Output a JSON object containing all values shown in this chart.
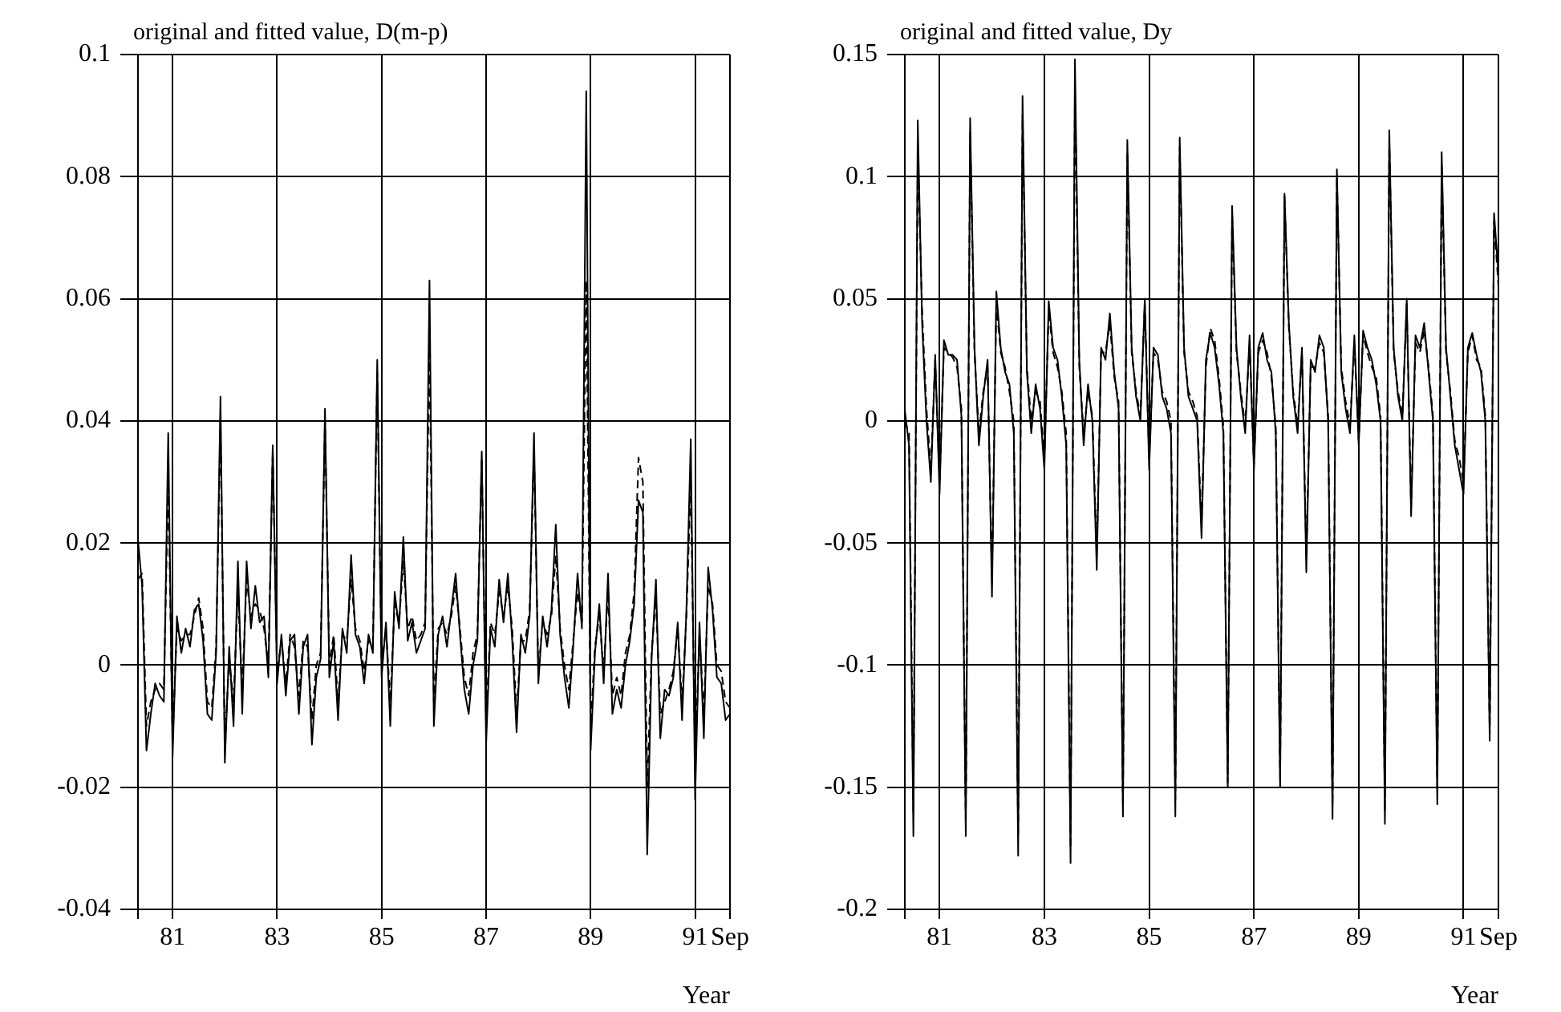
{
  "chart_data": [
    {
      "type": "line",
      "title": "original and fitted value, D(m-p)",
      "xlabel": "Year",
      "grid": true,
      "x": [
        "1980-05",
        "1980-06",
        "1980-07",
        "1980-08",
        "1980-09",
        "1980-10",
        "1980-11",
        "1980-12",
        "1981-01",
        "1981-02",
        "1981-03",
        "1981-04",
        "1981-05",
        "1981-06",
        "1981-07",
        "1981-08",
        "1981-09",
        "1981-10",
        "1981-11",
        "1981-12",
        "1982-01",
        "1982-02",
        "1982-03",
        "1982-04",
        "1982-05",
        "1982-06",
        "1982-07",
        "1982-08",
        "1982-09",
        "1982-10",
        "1982-11",
        "1982-12",
        "1983-01",
        "1983-02",
        "1983-03",
        "1983-04",
        "1983-05",
        "1983-06",
        "1983-07",
        "1983-08",
        "1983-09",
        "1983-10",
        "1983-11",
        "1983-12",
        "1984-01",
        "1984-02",
        "1984-03",
        "1984-04",
        "1984-05",
        "1984-06",
        "1984-07",
        "1984-08",
        "1984-09",
        "1984-10",
        "1984-11",
        "1984-12",
        "1985-01",
        "1985-02",
        "1985-03",
        "1985-04",
        "1985-05",
        "1985-06",
        "1985-07",
        "1985-08",
        "1985-09",
        "1985-10",
        "1985-11",
        "1985-12",
        "1986-01",
        "1986-02",
        "1986-03",
        "1986-04",
        "1986-05",
        "1986-06",
        "1986-07",
        "1986-08",
        "1986-09",
        "1986-10",
        "1986-11",
        "1986-12",
        "1987-01",
        "1987-02",
        "1987-03",
        "1987-04",
        "1987-05",
        "1987-06",
        "1987-07",
        "1987-08",
        "1987-09",
        "1987-10",
        "1987-11",
        "1987-12",
        "1988-01",
        "1988-02",
        "1988-03",
        "1988-04",
        "1988-05",
        "1988-06",
        "1988-07",
        "1988-08",
        "1988-09",
        "1988-10",
        "1988-11",
        "1988-12",
        "1989-01",
        "1989-02",
        "1989-03",
        "1989-04",
        "1989-05",
        "1989-06",
        "1989-07",
        "1989-08",
        "1989-09",
        "1989-10",
        "1989-11",
        "1989-12",
        "1990-01",
        "1990-02",
        "1990-03",
        "1990-04",
        "1990-05",
        "1990-06",
        "1990-07",
        "1990-08",
        "1990-09",
        "1990-10",
        "1990-11",
        "1990-12",
        "1991-01",
        "1991-02",
        "1991-03",
        "1991-04",
        "1991-05",
        "1991-06",
        "1991-07",
        "1991-08",
        "1991-09"
      ],
      "xlim": [
        "1980-01",
        "1991-09"
      ],
      "xticks": [
        {
          "value": "1980-05",
          "label": null
        },
        {
          "value": "1981-01",
          "label": "81"
        },
        {
          "value": "1983-01",
          "label": "83"
        },
        {
          "value": "1985-01",
          "label": "85"
        },
        {
          "value": "1987-01",
          "label": "87"
        },
        {
          "value": "1989-01",
          "label": "89"
        },
        {
          "value": "1991-01",
          "label": "91"
        },
        {
          "value": "1991-09",
          "label": "Sep"
        }
      ],
      "ylim": [
        -0.04,
        0.1
      ],
      "yticks": [
        -0.04,
        -0.02,
        0,
        0.02,
        0.04,
        0.06,
        0.08,
        0.1
      ],
      "series": [
        {
          "color": "#000000",
          "line_style": "solid",
          "values": [
            0.021,
            0.013,
            -0.014,
            -0.008,
            -0.003,
            -0.005,
            -0.006,
            0.038,
            -0.015,
            0.008,
            0.002,
            0.006,
            0.003,
            0.009,
            0.01,
            0.004,
            -0.008,
            -0.009,
            0.002,
            0.044,
            -0.016,
            0.003,
            -0.01,
            0.017,
            -0.008,
            0.017,
            0.006,
            0.013,
            0.007,
            0.008,
            -0.002,
            0.036,
            -0.003,
            0.005,
            -0.005,
            0.004,
            0.005,
            -0.008,
            0.003,
            0.005,
            -0.013,
            -0.002,
            0.001,
            0.042,
            -0.002,
            0.004,
            -0.009,
            0.006,
            0.002,
            0.018,
            0.005,
            0.003,
            -0.003,
            0.005,
            0.002,
            0.05,
            -0.002,
            0.007,
            -0.01,
            0.012,
            0.006,
            0.021,
            0.004,
            0.007,
            0.002,
            0.004,
            0.006,
            0.063,
            -0.01,
            0.005,
            0.008,
            0.003,
            0.009,
            0.015,
            0.005,
            -0.004,
            -0.008,
            0.0,
            0.004,
            0.035,
            -0.013,
            0.006,
            0.003,
            0.014,
            0.007,
            0.015,
            0.004,
            -0.011,
            0.005,
            0.002,
            0.008,
            0.038,
            -0.003,
            0.008,
            0.003,
            0.009,
            0.023,
            0.005,
            -0.002,
            -0.007,
            0.003,
            0.015,
            0.006,
            0.094,
            -0.014,
            0.002,
            0.01,
            -0.003,
            0.015,
            -0.008,
            -0.004,
            -0.007,
            0.0,
            0.004,
            0.01,
            0.027,
            0.025,
            -0.031,
            0.001,
            0.014,
            -0.012,
            -0.004,
            -0.005,
            -0.002,
            0.007,
            -0.009,
            0.009,
            0.037,
            -0.022,
            0.007,
            -0.012,
            0.016,
            0.009,
            -0.002,
            -0.003,
            -0.009,
            -0.008
          ]
        },
        {
          "color": "#000000",
          "line_style": "dashed",
          "values": [
            0.014,
            0.015,
            -0.01,
            -0.006,
            -0.004,
            -0.003,
            -0.004,
            0.03,
            -0.012,
            0.006,
            0.004,
            0.005,
            0.005,
            0.008,
            0.011,
            0.006,
            -0.006,
            -0.007,
            0.003,
            0.04,
            -0.013,
            0.001,
            -0.006,
            0.012,
            -0.004,
            0.014,
            0.008,
            0.01,
            0.009,
            0.006,
            0.0,
            0.035,
            -0.001,
            0.004,
            -0.003,
            0.005,
            0.003,
            -0.005,
            0.004,
            0.003,
            -0.009,
            0.0,
            0.002,
            0.04,
            0.0,
            0.005,
            -0.006,
            0.005,
            0.004,
            0.014,
            0.006,
            0.004,
            -0.001,
            0.004,
            0.003,
            0.048,
            0.0,
            0.006,
            -0.006,
            0.01,
            0.007,
            0.017,
            0.006,
            0.008,
            0.004,
            0.005,
            0.007,
            0.052,
            -0.006,
            0.006,
            0.007,
            0.005,
            0.008,
            0.013,
            0.006,
            -0.002,
            -0.005,
            0.002,
            0.005,
            0.034,
            -0.009,
            0.007,
            0.005,
            0.012,
            0.008,
            0.013,
            0.006,
            -0.008,
            0.004,
            0.004,
            0.009,
            0.035,
            -0.001,
            0.007,
            0.005,
            0.008,
            0.018,
            0.006,
            0.0,
            -0.004,
            0.004,
            0.012,
            0.007,
            0.063,
            -0.01,
            0.003,
            0.008,
            -0.001,
            0.012,
            -0.005,
            -0.002,
            -0.005,
            0.002,
            0.005,
            0.012,
            0.034,
            0.03,
            -0.02,
            0.002,
            0.011,
            -0.008,
            -0.006,
            -0.004,
            -0.001,
            0.006,
            -0.006,
            0.008,
            0.03,
            -0.016,
            0.005,
            -0.008,
            0.013,
            0.01,
            0.0,
            -0.001,
            -0.006,
            -0.007
          ]
        }
      ]
    },
    {
      "type": "line",
      "title": "original and fitted value, Dy",
      "xlabel": "Year",
      "grid": true,
      "x": [
        "1980-05",
        "1980-06",
        "1980-07",
        "1980-08",
        "1980-09",
        "1980-10",
        "1980-11",
        "1980-12",
        "1981-01",
        "1981-02",
        "1981-03",
        "1981-04",
        "1981-05",
        "1981-06",
        "1981-07",
        "1981-08",
        "1981-09",
        "1981-10",
        "1981-11",
        "1981-12",
        "1982-01",
        "1982-02",
        "1982-03",
        "1982-04",
        "1982-05",
        "1982-06",
        "1982-07",
        "1982-08",
        "1982-09",
        "1982-10",
        "1982-11",
        "1982-12",
        "1983-01",
        "1983-02",
        "1983-03",
        "1983-04",
        "1983-05",
        "1983-06",
        "1983-07",
        "1983-08",
        "1983-09",
        "1983-10",
        "1983-11",
        "1983-12",
        "1984-01",
        "1984-02",
        "1984-03",
        "1984-04",
        "1984-05",
        "1984-06",
        "1984-07",
        "1984-08",
        "1984-09",
        "1984-10",
        "1984-11",
        "1984-12",
        "1985-01",
        "1985-02",
        "1985-03",
        "1985-04",
        "1985-05",
        "1985-06",
        "1985-07",
        "1985-08",
        "1985-09",
        "1985-10",
        "1985-11",
        "1985-12",
        "1986-01",
        "1986-02",
        "1986-03",
        "1986-04",
        "1986-05",
        "1986-06",
        "1986-07",
        "1986-08",
        "1986-09",
        "1986-10",
        "1986-11",
        "1986-12",
        "1987-01",
        "1987-02",
        "1987-03",
        "1987-04",
        "1987-05",
        "1987-06",
        "1987-07",
        "1987-08",
        "1987-09",
        "1987-10",
        "1987-11",
        "1987-12",
        "1988-01",
        "1988-02",
        "1988-03",
        "1988-04",
        "1988-05",
        "1988-06",
        "1988-07",
        "1988-08",
        "1988-09",
        "1988-10",
        "1988-11",
        "1988-12",
        "1989-01",
        "1989-02",
        "1989-03",
        "1989-04",
        "1989-05",
        "1989-06",
        "1989-07",
        "1989-08",
        "1989-09",
        "1989-10",
        "1989-11",
        "1989-12",
        "1990-01",
        "1990-02",
        "1990-03",
        "1990-04",
        "1990-05",
        "1990-06",
        "1990-07",
        "1990-08",
        "1990-09",
        "1990-10",
        "1990-11",
        "1990-12",
        "1991-01",
        "1991-02",
        "1991-03",
        "1991-04",
        "1991-05",
        "1991-06",
        "1991-07",
        "1991-08",
        "1991-09"
      ],
      "xlim": [
        "1980-01",
        "1991-09"
      ],
      "xticks": [
        {
          "value": "1980-05",
          "label": null
        },
        {
          "value": "1981-01",
          "label": "81"
        },
        {
          "value": "1983-01",
          "label": "83"
        },
        {
          "value": "1985-01",
          "label": "85"
        },
        {
          "value": "1987-01",
          "label": "87"
        },
        {
          "value": "1989-01",
          "label": "89"
        },
        {
          "value": "1991-01",
          "label": "91"
        },
        {
          "value": "1991-09",
          "label": "Sep"
        }
      ],
      "ylim": [
        -0.2,
        0.15
      ],
      "yticks": [
        -0.2,
        -0.15,
        -0.1,
        -0.05,
        0,
        0.05,
        0.1,
        0.15
      ],
      "series": [
        {
          "color": "#000000",
          "line_style": "solid",
          "values": [
            0.005,
            -0.01,
            -0.17,
            0.123,
            0.04,
            0.0,
            -0.025,
            0.027,
            -0.03,
            0.033,
            0.027,
            0.027,
            0.025,
            0.002,
            -0.17,
            0.124,
            0.03,
            -0.01,
            0.01,
            0.025,
            -0.072,
            0.053,
            0.03,
            0.02,
            0.015,
            -0.005,
            -0.178,
            0.133,
            0.02,
            -0.005,
            0.015,
            0.005,
            -0.02,
            0.049,
            0.03,
            0.025,
            0.01,
            -0.01,
            -0.181,
            0.148,
            0.025,
            -0.01,
            0.015,
            0.0,
            -0.061,
            0.03,
            0.025,
            0.044,
            0.02,
            0.005,
            -0.162,
            0.115,
            0.03,
            0.01,
            0.0,
            0.05,
            -0.02,
            0.03,
            0.027,
            0.01,
            0.005,
            -0.005,
            -0.162,
            0.116,
            0.03,
            0.01,
            0.005,
            0.0,
            -0.048,
            0.025,
            0.036,
            0.03,
            0.015,
            -0.005,
            -0.15,
            0.088,
            0.03,
            0.01,
            -0.005,
            0.035,
            -0.02,
            0.03,
            0.036,
            0.025,
            0.02,
            -0.005,
            -0.15,
            0.093,
            0.04,
            0.01,
            -0.005,
            0.03,
            -0.062,
            0.025,
            0.02,
            0.035,
            0.03,
            0.0,
            -0.163,
            0.103,
            0.02,
            0.005,
            -0.005,
            0.035,
            -0.01,
            0.037,
            0.03,
            0.025,
            0.015,
            0.0,
            -0.165,
            0.119,
            0.03,
            0.01,
            0.0,
            0.05,
            -0.039,
            0.035,
            0.03,
            0.04,
            0.02,
            0.0,
            -0.157,
            0.11,
            0.03,
            0.01,
            -0.01,
            -0.02,
            -0.03,
            0.03,
            0.036,
            0.027,
            0.02,
            0.0,
            -0.131,
            0.085,
            0.06
          ]
        },
        {
          "color": "#000000",
          "line_style": "dashed",
          "values": [
            0.0,
            -0.005,
            -0.16,
            0.11,
            0.045,
            0.005,
            -0.02,
            0.025,
            -0.025,
            0.03,
            0.028,
            0.026,
            0.022,
            0.005,
            -0.165,
            0.118,
            0.028,
            -0.005,
            0.012,
            0.022,
            -0.065,
            0.048,
            0.028,
            0.022,
            0.012,
            0.0,
            -0.17,
            0.125,
            0.022,
            0.0,
            0.012,
            0.008,
            -0.015,
            0.045,
            0.028,
            0.022,
            0.012,
            -0.005,
            -0.175,
            0.135,
            0.022,
            -0.005,
            0.012,
            0.002,
            -0.055,
            0.028,
            0.028,
            0.04,
            0.018,
            0.008,
            -0.158,
            0.11,
            0.028,
            0.012,
            0.002,
            0.048,
            -0.015,
            0.028,
            0.025,
            0.012,
            0.008,
            0.0,
            -0.155,
            0.112,
            0.028,
            0.012,
            0.008,
            0.002,
            -0.042,
            0.022,
            0.038,
            0.033,
            0.018,
            -0.002,
            -0.148,
            0.085,
            0.028,
            0.012,
            -0.002,
            0.032,
            -0.018,
            0.028,
            0.033,
            0.028,
            0.018,
            -0.002,
            -0.147,
            0.092,
            0.038,
            0.012,
            -0.002,
            0.028,
            -0.055,
            0.022,
            0.022,
            0.032,
            0.028,
            0.002,
            -0.158,
            0.1,
            0.022,
            0.008,
            -0.002,
            0.032,
            -0.008,
            0.035,
            0.028,
            0.022,
            0.018,
            0.002,
            -0.16,
            0.115,
            0.028,
            0.012,
            0.002,
            0.048,
            -0.035,
            0.032,
            0.028,
            0.037,
            0.022,
            0.002,
            -0.15,
            0.105,
            0.028,
            0.012,
            -0.008,
            -0.015,
            -0.025,
            0.028,
            0.035,
            0.025,
            0.022,
            0.002,
            -0.128,
            0.082,
            0.055
          ]
        }
      ]
    }
  ]
}
